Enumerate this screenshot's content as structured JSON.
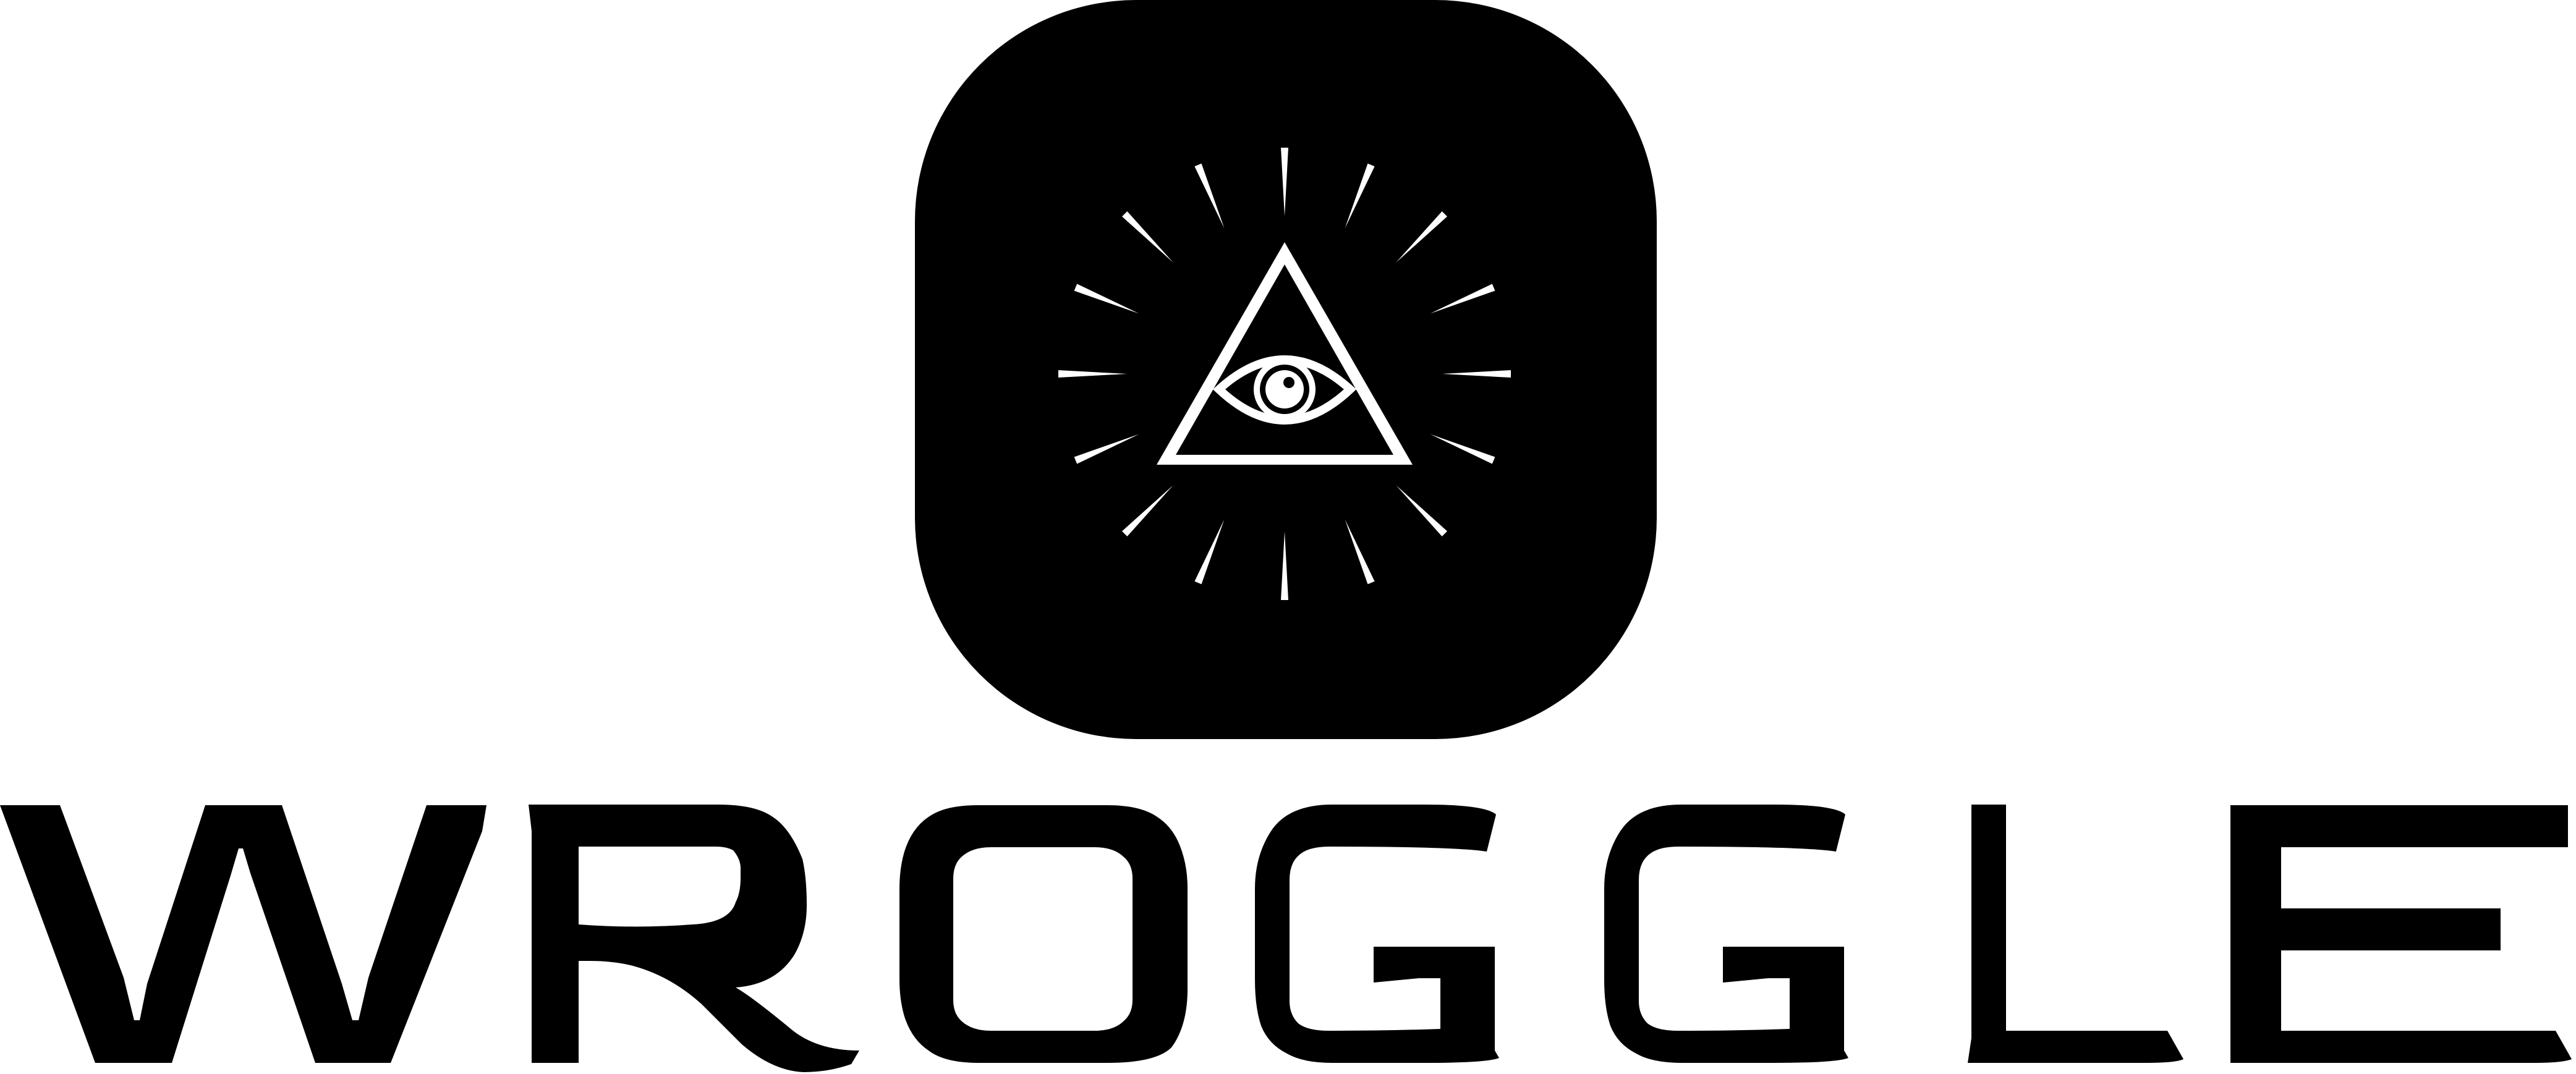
{
  "logo": {
    "icon": "all-seeing-eye-triangle-icon",
    "wordmark": "WROGGLE",
    "colors": {
      "foreground": "#000000",
      "background": "#ffffff",
      "icon_symbol": "#ffffff"
    }
  }
}
